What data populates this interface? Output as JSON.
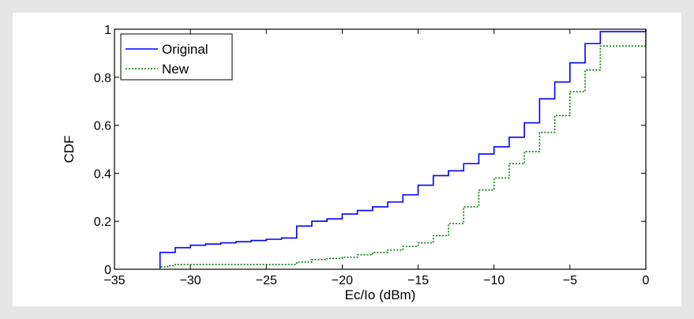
{
  "chart_data": {
    "type": "line",
    "subtype": "step",
    "xlabel": "Ec/Io (dBm)",
    "ylabel": "CDF",
    "xlim": [
      -35,
      0
    ],
    "ylim": [
      0,
      1
    ],
    "xticks": [
      -35,
      -30,
      -25,
      -20,
      -15,
      -10,
      -5,
      0
    ],
    "xtick_labels": [
      "−35",
      "−30",
      "−25",
      "−20",
      "−15",
      "−10",
      "−5",
      "0"
    ],
    "yticks": [
      0,
      0.2,
      0.4,
      0.6,
      0.8,
      1
    ],
    "ytick_labels": [
      "0",
      "0.2",
      "0.4",
      "0.6",
      "0.8",
      "1"
    ],
    "grid": false,
    "legend_position": "top-left",
    "series": [
      {
        "name": "Original",
        "color": "#0000ff",
        "style": "solid",
        "x": [
          -32,
          -31.5,
          -31,
          -30,
          -29,
          -28,
          -27,
          -26,
          -25,
          -24,
          -23,
          -22,
          -21,
          -20,
          -19,
          -18,
          -17,
          -16,
          -15,
          -14,
          -13,
          -12,
          -11,
          -10,
          -9,
          -8,
          -7,
          -6,
          -5,
          -4,
          -3,
          0
        ],
        "y": [
          0.07,
          0.07,
          0.09,
          0.1,
          0.105,
          0.11,
          0.115,
          0.12,
          0.125,
          0.13,
          0.18,
          0.2,
          0.21,
          0.23,
          0.245,
          0.26,
          0.28,
          0.31,
          0.35,
          0.39,
          0.41,
          0.44,
          0.48,
          0.51,
          0.55,
          0.61,
          0.71,
          0.78,
          0.86,
          0.94,
          0.99,
          1.0
        ]
      },
      {
        "name": "New",
        "color": "#008000",
        "style": "dotted",
        "x": [
          -32,
          -31.5,
          -31,
          -30,
          -29,
          -28,
          -27,
          -26,
          -25,
          -24,
          -23,
          -22,
          -21,
          -20,
          -19,
          -18,
          -17,
          -16,
          -15,
          -14,
          -13,
          -12,
          -11,
          -10,
          -9,
          -8,
          -7,
          -6,
          -5,
          -4,
          -3,
          0
        ],
        "y": [
          0.01,
          0.015,
          0.02,
          0.02,
          0.02,
          0.02,
          0.02,
          0.02,
          0.02,
          0.02,
          0.03,
          0.04,
          0.045,
          0.05,
          0.06,
          0.07,
          0.08,
          0.095,
          0.11,
          0.14,
          0.19,
          0.26,
          0.33,
          0.38,
          0.44,
          0.49,
          0.57,
          0.64,
          0.74,
          0.83,
          0.93,
          1.0
        ]
      }
    ]
  }
}
